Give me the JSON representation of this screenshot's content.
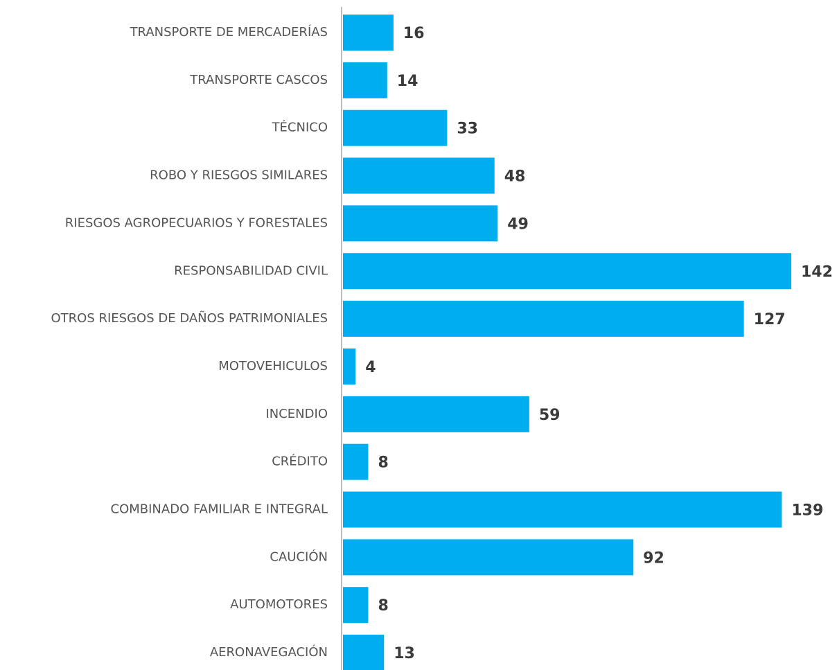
{
  "chart_data": {
    "type": "barh",
    "categories": [
      "TRANSPORTE DE MERCADERÍAS",
      "TRANSPORTE CASCOS",
      "TÉCNICO",
      "ROBO Y RIESGOS SIMILARES",
      "RIESGOS AGROPECUARIOS Y FORESTALES",
      "RESPONSABILIDAD CIVIL",
      "OTROS RIESGOS DE DAÑOS PATRIMONIALES",
      "MOTOVEHICULOS",
      "INCENDIO",
      "CRÉDITO",
      "COMBINADO FAMILIAR E INTEGRAL",
      "CAUCIÓN",
      "AUTOMOTORES",
      "AERONAVEGACIÓN"
    ],
    "values": [
      16,
      14,
      33,
      48,
      49,
      142,
      127,
      4,
      59,
      8,
      139,
      92,
      8,
      13
    ],
    "color": "#00aeef"
  }
}
